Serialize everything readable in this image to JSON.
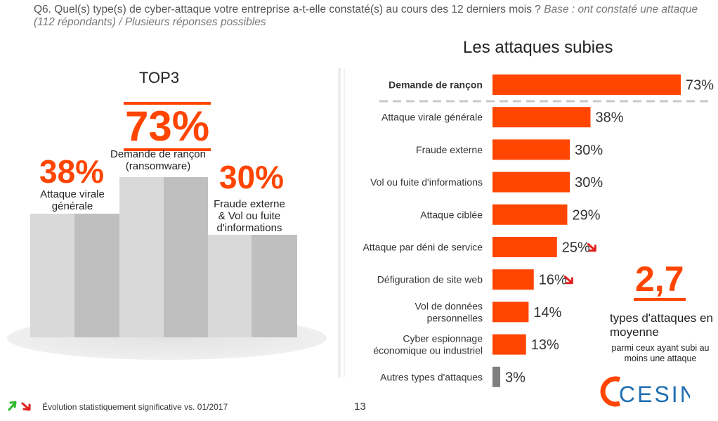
{
  "question": {
    "text": "Q6. Quel(s) type(s) de cyber-attaque votre entreprise a-t-elle constaté(s) au cours des 12 derniers mois ?",
    "base": "Base : ont constaté une attaque (112 répondants) / Plusieurs réponses possibles"
  },
  "podium": {
    "title": "TOP3",
    "first": {
      "value": "73%",
      "label_line1": "Demande de rançon",
      "label_line2": "(ransomware)"
    },
    "second": {
      "value": "38%",
      "label_line1": "Attaque virale",
      "label_line2": "générale"
    },
    "third": {
      "value": "30%",
      "label_line1": "Fraude externe",
      "label_line2": "& Vol ou fuite",
      "label_line3": "d'informations"
    },
    "colors": {
      "light": "#d9d9d9",
      "dark": "#bfbfbf"
    }
  },
  "chart_data": {
    "type": "bar",
    "title": "Les attaques subies",
    "orientation": "horizontal",
    "categories": [
      "Demande de rançon",
      "Attaque virale générale",
      "Fraude externe",
      "Vol ou fuite d'informations",
      "Attaque ciblée",
      "Attaque par déni de service",
      "Défiguration de site web",
      "Vol de données personnelles",
      "Cyber espionnage économique ou industriel",
      "Autres types d'attaques"
    ],
    "category_lines": [
      [
        "Demande de rançon"
      ],
      [
        "Attaque virale générale"
      ],
      [
        "Fraude externe"
      ],
      [
        "Vol ou fuite d'informations"
      ],
      [
        "Attaque ciblée"
      ],
      [
        "Attaque par déni de service"
      ],
      [
        "Défiguration de site web"
      ],
      [
        "Vol de données",
        "personnelles"
      ],
      [
        "Cyber espionnage",
        "économique ou industriel"
      ],
      [
        "Autres types d'attaques"
      ]
    ],
    "values": [
      73,
      38,
      30,
      30,
      29,
      25,
      16,
      14,
      13,
      3
    ],
    "value_labels": [
      "73%",
      "38%",
      "30%",
      "30%",
      "29%",
      "25%",
      "16%",
      "14%",
      "13%",
      "3%"
    ],
    "trend_down": [
      false,
      false,
      false,
      false,
      false,
      true,
      true,
      false,
      false,
      false
    ],
    "highlight": [
      true,
      false,
      false,
      false,
      false,
      false,
      false,
      false,
      false,
      false
    ],
    "bar_colors": [
      "#ff4500",
      "#ff4500",
      "#ff4500",
      "#ff4500",
      "#ff4500",
      "#ff4500",
      "#ff4500",
      "#ff4500",
      "#ff4500",
      "#7f7f7f"
    ],
    "xlim": [
      0,
      73
    ]
  },
  "average": {
    "value": "2,7",
    "line1": "types d'attaques en moyenne",
    "line2": "parmi ceux ayant subi au moins une attaque"
  },
  "footer": {
    "note": "Évolution statistiquement significative vs. 01/2017",
    "page": "13",
    "logo_text": "CESIN",
    "up_color": "#2eb82e",
    "down_color": "#e02020"
  }
}
